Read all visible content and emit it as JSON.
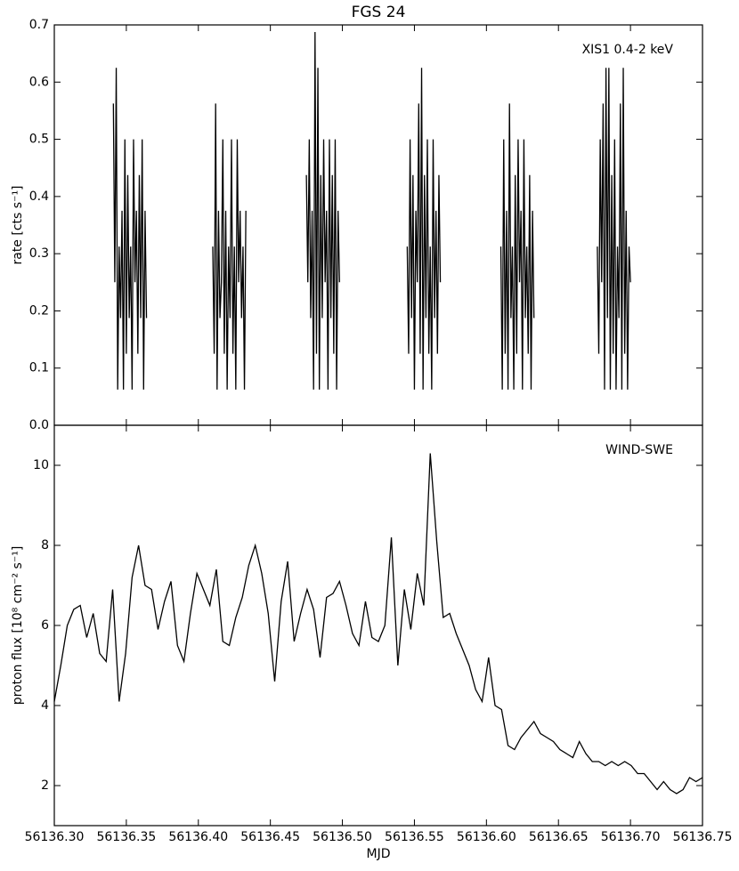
{
  "chart_data": [
    {
      "type": "line",
      "title": "FGS 24",
      "ylabel": "rate [cts s⁻¹]",
      "annotation": "XIS1 0.4-2 keV",
      "xlim": [
        56136.3,
        56136.75
      ],
      "ylim": [
        0,
        0.7
      ],
      "yticks": [
        {
          "value": 0,
          "label": "0.0"
        },
        0.1,
        0.2,
        0.3,
        0.4,
        0.5,
        0.6,
        0.7
      ],
      "x": [
        56136.341,
        56136.342,
        56136.343,
        56136.344,
        56136.345,
        56136.346,
        56136.347,
        56136.348,
        56136.349,
        56136.35,
        56136.351,
        56136.352,
        56136.353,
        56136.354,
        56136.355,
        56136.356,
        56136.357,
        56136.358,
        56136.359,
        56136.36,
        56136.361,
        56136.362,
        56136.363,
        56136.364,
        56136.387,
        56136.41,
        56136.411,
        56136.412,
        56136.413,
        56136.414,
        56136.415,
        56136.416,
        56136.417,
        56136.418,
        56136.419,
        56136.42,
        56136.421,
        56136.422,
        56136.423,
        56136.424,
        56136.425,
        56136.426,
        56136.427,
        56136.428,
        56136.429,
        56136.43,
        56136.431,
        56136.432,
        56136.433,
        56136.454,
        56136.475,
        56136.476,
        56136.477,
        56136.478,
        56136.479,
        56136.48,
        56136.481,
        56136.482,
        56136.483,
        56136.484,
        56136.485,
        56136.486,
        56136.487,
        56136.488,
        56136.489,
        56136.49,
        56136.491,
        56136.492,
        56136.493,
        56136.494,
        56136.495,
        56136.496,
        56136.497,
        56136.498,
        56136.521,
        56136.545,
        56136.546,
        56136.547,
        56136.548,
        56136.549,
        56136.55,
        56136.551,
        56136.552,
        56136.553,
        56136.554,
        56136.555,
        56136.556,
        56136.557,
        56136.558,
        56136.559,
        56136.56,
        56136.561,
        56136.562,
        56136.563,
        56136.564,
        56136.565,
        56136.566,
        56136.567,
        56136.568,
        56136.589,
        56136.61,
        56136.611,
        56136.612,
        56136.613,
        56136.614,
        56136.615,
        56136.616,
        56136.617,
        56136.618,
        56136.619,
        56136.62,
        56136.621,
        56136.622,
        56136.623,
        56136.624,
        56136.625,
        56136.626,
        56136.627,
        56136.628,
        56136.629,
        56136.63,
        56136.631,
        56136.632,
        56136.633,
        56136.655,
        56136.677,
        56136.678,
        56136.679,
        56136.68,
        56136.681,
        56136.682,
        56136.683,
        56136.684,
        56136.685,
        56136.686,
        56136.687,
        56136.688,
        56136.689,
        56136.69,
        56136.691,
        56136.692,
        56136.693,
        56136.694,
        56136.695,
        56136.696,
        56136.697,
        56136.698,
        56136.699,
        56136.7
      ],
      "series": [
        {
          "color": "#000000",
          "values": [
            0.5625,
            0.25,
            0.625,
            0.0625,
            0.3125,
            0.1875,
            0.375,
            0.0625,
            0.5,
            0.125,
            0.4375,
            0.1875,
            0.3125,
            0.0625,
            0.5,
            0.25,
            0.375,
            0.125,
            0.4375,
            0.1875,
            0.5,
            0.0625,
            0.375,
            0.1875,
            null,
            0.3125,
            0.125,
            0.5625,
            0.0625,
            0.375,
            0.1875,
            0.25,
            0.5,
            0.125,
            0.375,
            0.0625,
            0.3125,
            0.1875,
            0.5,
            0.125,
            0.3125,
            0.0625,
            0.5,
            0.25,
            0.375,
            0.1875,
            0.3125,
            0.0625,
            0.375,
            null,
            0.4375,
            0.25,
            0.5,
            0.1875,
            0.375,
            0.0625,
            0.6875,
            0.125,
            0.625,
            0.0625,
            0.4375,
            0.1875,
            0.5,
            0.25,
            0.375,
            0.0625,
            0.5,
            0.1875,
            0.4375,
            0.125,
            0.5,
            0.0625,
            0.375,
            0.25,
            null,
            0.3125,
            0.125,
            0.5,
            0.1875,
            0.4375,
            0.0625,
            0.375,
            0.25,
            0.5625,
            0.125,
            0.625,
            0.0625,
            0.4375,
            0.1875,
            0.5,
            0.125,
            0.3125,
            0.0625,
            0.5,
            0.1875,
            0.375,
            0.125,
            0.4375,
            0.25,
            null,
            0.3125,
            0.0625,
            0.5,
            0.125,
            0.375,
            0.0625,
            0.5625,
            0.1875,
            0.3125,
            0.0625,
            0.4375,
            0.125,
            0.5,
            0.25,
            0.375,
            0.0625,
            0.5,
            0.1875,
            0.3125,
            0.125,
            0.4375,
            0.0625,
            0.375,
            0.1875,
            null,
            0.3125,
            0.125,
            0.5,
            0.25,
            0.5625,
            0.0625,
            0.625,
            0.1875,
            0.625,
            0.0625,
            0.4375,
            0.125,
            0.5,
            0.0625,
            0.3125,
            0.1875,
            0.5625,
            0.0625,
            0.625,
            0.125,
            0.375,
            0.0625,
            0.3125,
            0.25
          ]
        }
      ]
    },
    {
      "type": "line",
      "ylabel": "proton flux [10⁸ cm⁻² s⁻¹]",
      "xlabel": "MJD",
      "annotation": "WIND-SWE",
      "xlim": [
        56136.3,
        56136.75
      ],
      "ylim": [
        1,
        11
      ],
      "xticks": [
        {
          "value": 56136.3,
          "label": "56136.30"
        },
        56136.35,
        {
          "value": 56136.4,
          "label": "56136.40"
        },
        56136.45,
        {
          "value": 56136.5,
          "label": "56136.50"
        },
        56136.55,
        {
          "value": 56136.6,
          "label": "56136.60"
        },
        56136.65,
        {
          "value": 56136.7,
          "label": "56136.70"
        },
        56136.75
      ],
      "yticks": [
        2,
        4,
        6,
        8,
        10
      ],
      "x": [
        56136.3,
        56136.3045,
        56136.309,
        56136.3135,
        56136.318,
        56136.3225,
        56136.327,
        56136.3315,
        56136.336,
        56136.3405,
        56136.345,
        56136.3495,
        56136.354,
        56136.3585,
        56136.363,
        56136.3675,
        56136.372,
        56136.3765,
        56136.381,
        56136.3855,
        56136.39,
        56136.3945,
        56136.399,
        56136.4035,
        56136.408,
        56136.4125,
        56136.417,
        56136.4215,
        56136.426,
        56136.4305,
        56136.435,
        56136.4395,
        56136.444,
        56136.4485,
        56136.453,
        56136.4575,
        56136.462,
        56136.4665,
        56136.471,
        56136.4755,
        56136.48,
        56136.4845,
        56136.489,
        56136.4935,
        56136.498,
        56136.5025,
        56136.507,
        56136.5115,
        56136.516,
        56136.5205,
        56136.525,
        56136.5295,
        56136.534,
        56136.5385,
        56136.543,
        56136.5475,
        56136.552,
        56136.5565,
        56136.561,
        56136.5655,
        56136.57,
        56136.5745,
        56136.579,
        56136.5835,
        56136.588,
        56136.5925,
        56136.597,
        56136.6015,
        56136.606,
        56136.6105,
        56136.615,
        56136.6195,
        56136.624,
        56136.6285,
        56136.633,
        56136.6375,
        56136.642,
        56136.6465,
        56136.651,
        56136.6555,
        56136.66,
        56136.6645,
        56136.669,
        56136.6735,
        56136.678,
        56136.6825,
        56136.687,
        56136.6915,
        56136.696,
        56136.7005,
        56136.705,
        56136.7095,
        56136.714,
        56136.7185,
        56136.723,
        56136.7275,
        56136.732,
        56136.7365,
        56136.741,
        56136.7455,
        56136.75
      ],
      "series": [
        {
          "color": "#000000",
          "values": [
            4.1,
            5.0,
            6.0,
            6.4,
            6.5,
            5.7,
            6.3,
            5.3,
            5.1,
            6.9,
            4.1,
            5.3,
            7.2,
            8.0,
            7.0,
            6.9,
            5.9,
            6.6,
            7.1,
            5.5,
            5.1,
            6.3,
            7.3,
            6.9,
            6.5,
            7.4,
            5.6,
            5.5,
            6.2,
            6.7,
            7.5,
            8.0,
            7.3,
            6.3,
            4.6,
            6.6,
            7.6,
            5.6,
            6.3,
            6.9,
            6.4,
            5.2,
            6.7,
            6.8,
            7.1,
            6.5,
            5.8,
            5.5,
            6.6,
            5.7,
            5.6,
            6.0,
            8.2,
            5.0,
            6.9,
            5.9,
            7.3,
            6.5,
            10.3,
            8.1,
            6.2,
            6.3,
            5.8,
            5.4,
            5.0,
            4.4,
            4.1,
            5.2,
            4.0,
            3.9,
            3.0,
            2.9,
            3.2,
            3.4,
            3.6,
            3.3,
            3.2,
            3.1,
            2.9,
            2.8,
            2.7,
            3.1,
            2.8,
            2.6,
            2.6,
            2.5,
            2.6,
            2.5,
            2.6,
            2.5,
            2.3,
            2.3,
            2.1,
            1.9,
            2.1,
            1.9,
            1.8,
            1.9,
            2.2,
            2.1,
            2.2
          ]
        }
      ]
    }
  ]
}
